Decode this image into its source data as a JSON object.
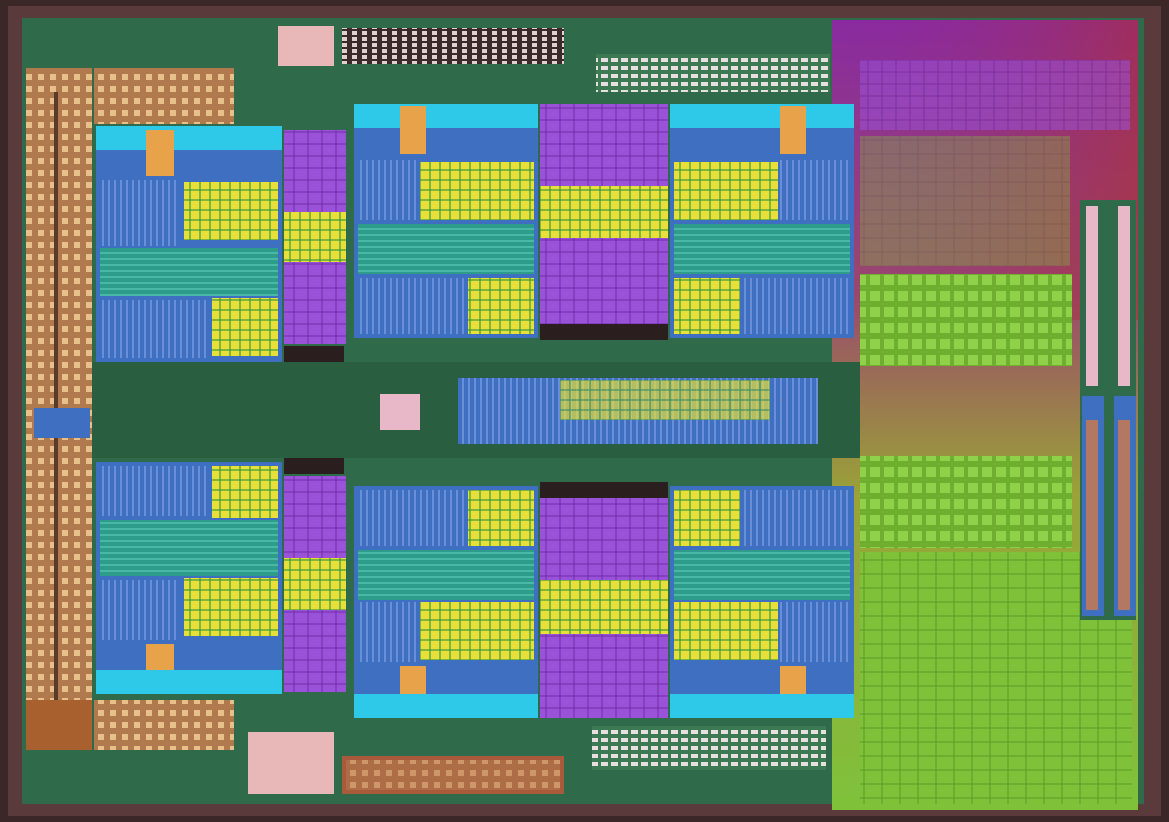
{
  "image": {
    "subject": "cpu-die",
    "palette": {
      "substrate": "#2f6a4a",
      "substrate_dark": "#234f38",
      "border": "#3b2628",
      "cache_purple": "#9a4fd6",
      "cache_magenta": "#8a2aa0",
      "core_blue": "#3f6fc0",
      "logic_teal": "#2e9c8a",
      "sram_yellow": "#e8df3a",
      "block_orange": "#e8a24a",
      "io_green": "#7fc23a",
      "io_olive": "#9aa238",
      "pad_copper": "#b8845a",
      "cyan_edge": "#2ec8e8"
    }
  }
}
